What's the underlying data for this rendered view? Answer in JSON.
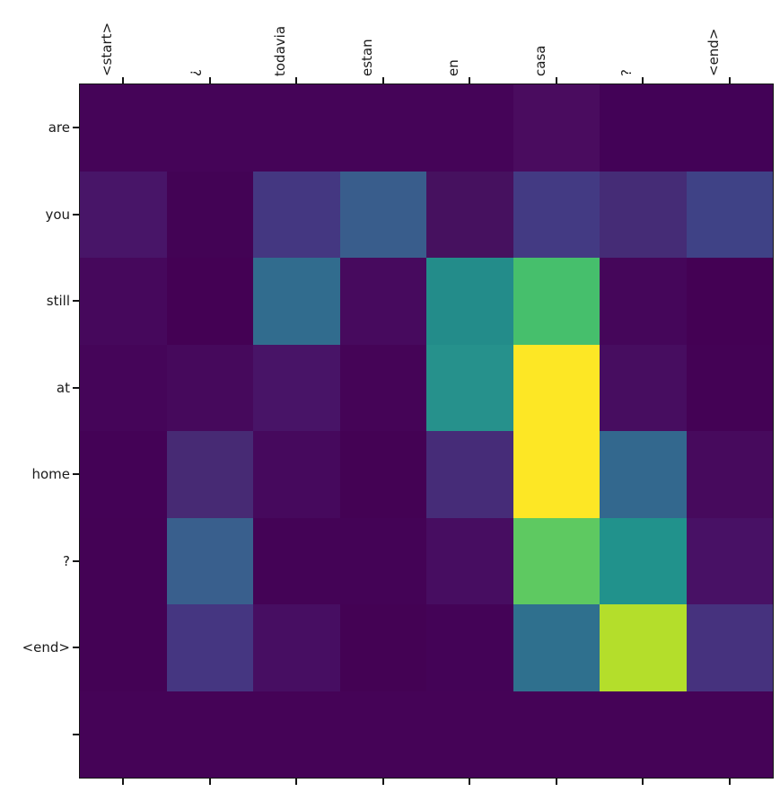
{
  "figure": {
    "kind": "attention-heatmap-figure",
    "background_color": "#ffffff",
    "axis_color": "#141414",
    "label_color": "#1a1a1a"
  },
  "chart_data": {
    "type": "heatmap",
    "title": "",
    "xlabel": "",
    "ylabel": "",
    "colormap": "viridis",
    "colormap_min_color": "#440154",
    "colormap_max_color": "#fde725",
    "x_axis_position": "top",
    "x_label_rotation_deg": 90,
    "grid": false,
    "legend": "none",
    "x_labels": [
      "<start>",
      "¿",
      "todavia",
      "estan",
      "en",
      "casa",
      "?",
      "<end>"
    ],
    "y_labels": [
      "are",
      "you",
      "still",
      "at",
      "home",
      "?",
      "<end>",
      ""
    ],
    "value_range": [
      0,
      1
    ],
    "values": [
      [
        0.01,
        0.01,
        0.01,
        0.01,
        0.01,
        0.04,
        0.01,
        0.01
      ],
      [
        0.09,
        0.01,
        0.22,
        0.33,
        0.06,
        0.23,
        0.17,
        0.27
      ],
      [
        0.03,
        0.0,
        0.38,
        0.03,
        0.49,
        0.73,
        0.02,
        0.0
      ],
      [
        0.02,
        0.03,
        0.08,
        0.02,
        0.51,
        1.0,
        0.05,
        0.01
      ],
      [
        0.01,
        0.16,
        0.03,
        0.01,
        0.18,
        1.0,
        0.36,
        0.04
      ],
      [
        0.01,
        0.33,
        0.01,
        0.01,
        0.05,
        0.77,
        0.51,
        0.07
      ],
      [
        0.01,
        0.21,
        0.06,
        0.01,
        0.01,
        0.39,
        0.89,
        0.2
      ],
      [
        0.01,
        0.01,
        0.01,
        0.01,
        0.01,
        0.01,
        0.01,
        0.01
      ]
    ],
    "cell_colors": [
      [
        "#450458",
        "#450458",
        "#450458",
        "#450458",
        "#450458",
        "#4a0c5f",
        "#430257",
        "#430257"
      ],
      [
        "#481568",
        "#430355",
        "#443781",
        "#395d8c",
        "#46115f",
        "#433a83",
        "#452c76",
        "#3f4286"
      ],
      [
        "#46085c",
        "#440154",
        "#316c8e",
        "#470a5e",
        "#238c8a",
        "#46bf6c",
        "#45065a",
        "#440154"
      ],
      [
        "#450559",
        "#46095c",
        "#481467",
        "#450457",
        "#26918c",
        "#fde725",
        "#470d60",
        "#440255"
      ],
      [
        "#440256",
        "#472a74",
        "#46095d",
        "#440254",
        "#462c78",
        "#fde725",
        "#33688e",
        "#470a5d"
      ],
      [
        "#440255",
        "#395f8d",
        "#440356",
        "#440356",
        "#470d61",
        "#5ec961",
        "#21928c",
        "#481165"
      ],
      [
        "#440255",
        "#453681",
        "#470e62",
        "#440254",
        "#440357",
        "#2f708e",
        "#b4de2b",
        "#46327e"
      ],
      [
        "#450357",
        "#450357",
        "#450357",
        "#450357",
        "#450357",
        "#450357",
        "#450357",
        "#450357"
      ]
    ]
  }
}
